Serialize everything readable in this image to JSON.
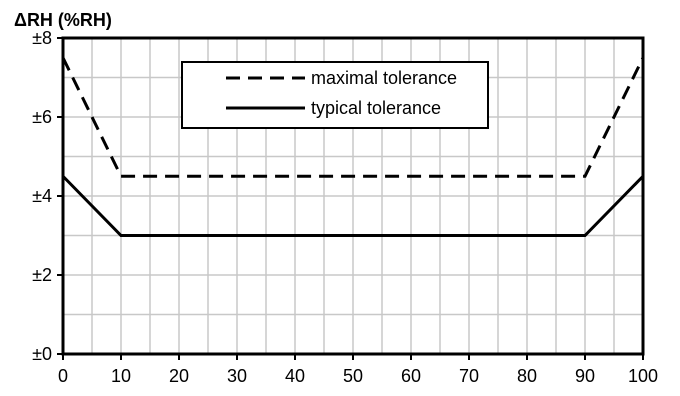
{
  "chart_data": {
    "type": "line",
    "title": "",
    "xlabel": "",
    "ylabel": "ΔRH (%RH)",
    "xlim": [
      0,
      100
    ],
    "ylim": [
      0,
      8
    ],
    "x_ticks": [
      0,
      10,
      20,
      30,
      40,
      50,
      60,
      70,
      80,
      90,
      100
    ],
    "x_tick_labels": [
      "0",
      "10",
      "20",
      "30",
      "40",
      "50",
      "60",
      "70",
      "80",
      "90",
      "100"
    ],
    "y_ticks": [
      0,
      2,
      4,
      6,
      8
    ],
    "y_tick_labels": [
      "±0",
      "±2",
      "±4",
      "±6",
      "±8"
    ],
    "grid": true,
    "legend_position": "top-center",
    "series": [
      {
        "name": "maximal tolerance",
        "style": "dashed",
        "color": "#000000",
        "x": [
          0,
          10,
          90,
          100
        ],
        "y": [
          7.5,
          4.5,
          4.5,
          7.5
        ]
      },
      {
        "name": "typical tolerance",
        "style": "solid",
        "color": "#000000",
        "x": [
          0,
          10,
          90,
          100
        ],
        "y": [
          4.5,
          3,
          3,
          4.5
        ]
      }
    ]
  }
}
